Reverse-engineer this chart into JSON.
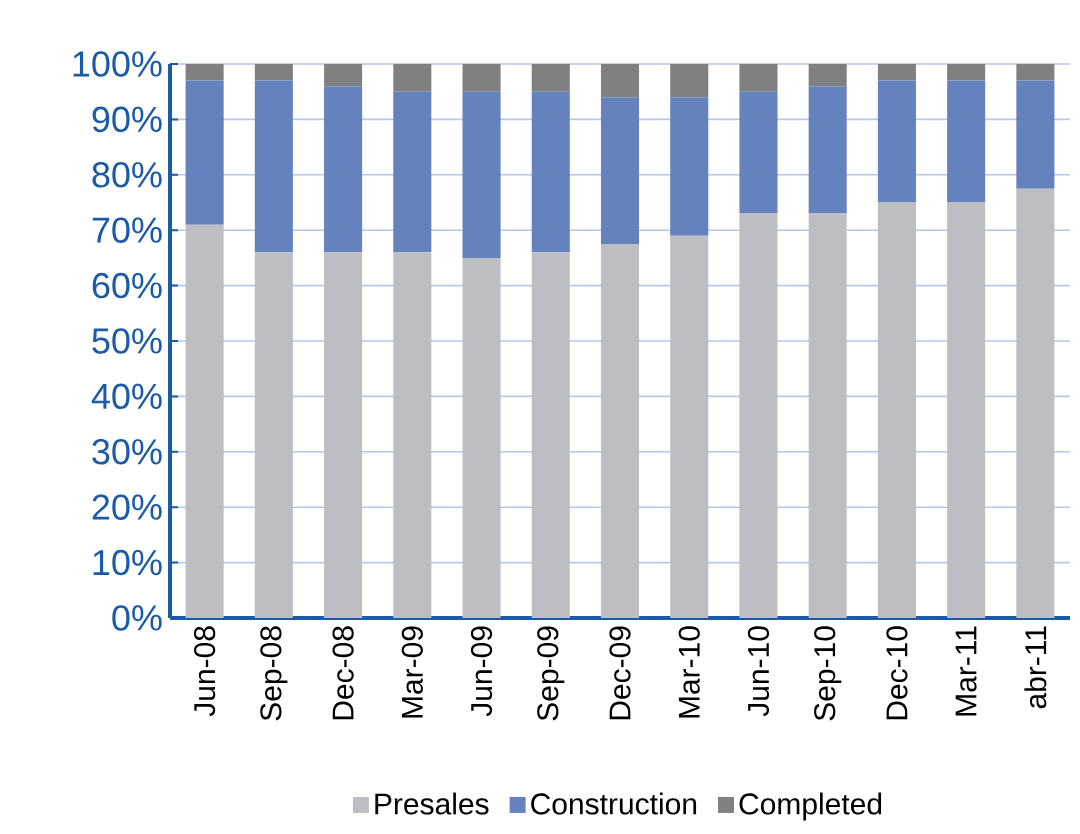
{
  "chart_data": {
    "type": "bar",
    "stacked": true,
    "categories": [
      "Jun-08",
      "Sep-08",
      "Dec-08",
      "Mar-09",
      "Jun-09",
      "Sep-09",
      "Dec-09",
      "Mar-10",
      "Jun-10",
      "Sep-10",
      "Dec-10",
      "Mar-11",
      "abr-11"
    ],
    "series": [
      {
        "name": "Presales",
        "color": "#bdbec2",
        "values": [
          71,
          66,
          66,
          66,
          65,
          66,
          67.5,
          69,
          73,
          73,
          75,
          75,
          77.5
        ]
      },
      {
        "name": "Construction",
        "color": "#6482bd",
        "values": [
          26,
          31,
          30,
          29,
          30,
          29,
          26.5,
          25,
          22,
          23,
          22,
          22,
          19.5
        ]
      },
      {
        "name": "Completed",
        "color": "#808080",
        "values": [
          3,
          3,
          4,
          5,
          5,
          5,
          6,
          6,
          5,
          4,
          3,
          3,
          3
        ]
      }
    ],
    "ylim": [
      0,
      100
    ],
    "yticks": [
      {
        "value": 0,
        "label": "0%"
      },
      {
        "value": 10,
        "label": "10%"
      },
      {
        "value": 20,
        "label": "20%"
      },
      {
        "value": 30,
        "label": "30%"
      },
      {
        "value": 40,
        "label": "40%"
      },
      {
        "value": 50,
        "label": "50%"
      },
      {
        "value": 60,
        "label": "60%"
      },
      {
        "value": 70,
        "label": "70%"
      },
      {
        "value": 80,
        "label": "80%"
      },
      {
        "value": 90,
        "label": "90%"
      },
      {
        "value": 100,
        "label": "100%"
      }
    ],
    "grid": "y",
    "legend": "bottom"
  }
}
